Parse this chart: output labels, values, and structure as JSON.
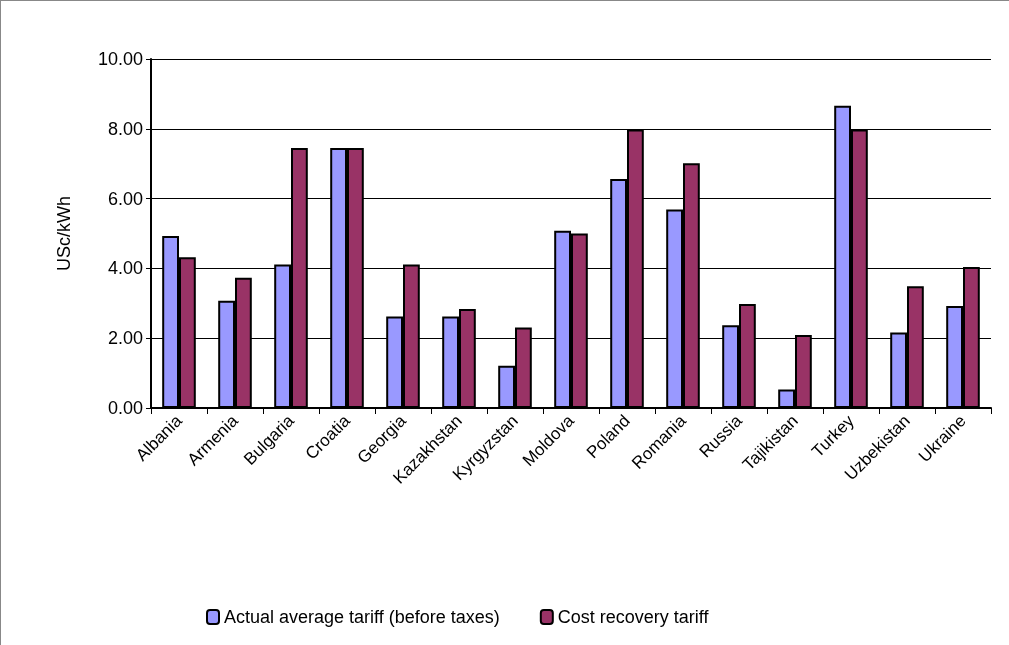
{
  "chart_data": {
    "type": "bar",
    "ylabel": "USc/kWh",
    "categories": [
      "Albania",
      "Armenia",
      "Bulgaria",
      "Croatia",
      "Georgia",
      "Kazakhstan",
      "Kyrgyzstan",
      "Moldova",
      "Poland",
      "Romania",
      "Russia",
      "Tajikistan",
      "Turkey",
      "Uzbekistan",
      "Ukraine"
    ],
    "series": [
      {
        "name": "Actual average tariff (before taxes)",
        "color": "#9999ff",
        "values": [
          4.93,
          3.07,
          4.11,
          7.45,
          2.62,
          2.62,
          1.21,
          5.08,
          6.56,
          5.69,
          2.37,
          0.53,
          8.66,
          2.16,
          2.92
        ]
      },
      {
        "name": "Cost recovery tariff",
        "color": "#993366",
        "values": [
          4.32,
          3.73,
          7.45,
          7.45,
          4.11,
          2.84,
          2.31,
          5.0,
          7.98,
          7.01,
          2.98,
          2.09,
          7.98,
          3.49,
          4.04
        ]
      }
    ],
    "ylim": [
      0,
      10
    ],
    "yticks": [
      {
        "value": 0,
        "label": "0.00"
      },
      {
        "value": 2,
        "label": "2.00"
      },
      {
        "value": 4,
        "label": "4.00"
      },
      {
        "value": 6,
        "label": "6.00"
      },
      {
        "value": 8,
        "label": "8.00"
      },
      {
        "value": 10,
        "label": "10.00"
      }
    ],
    "grid": "y",
    "legend": "bottom"
  }
}
